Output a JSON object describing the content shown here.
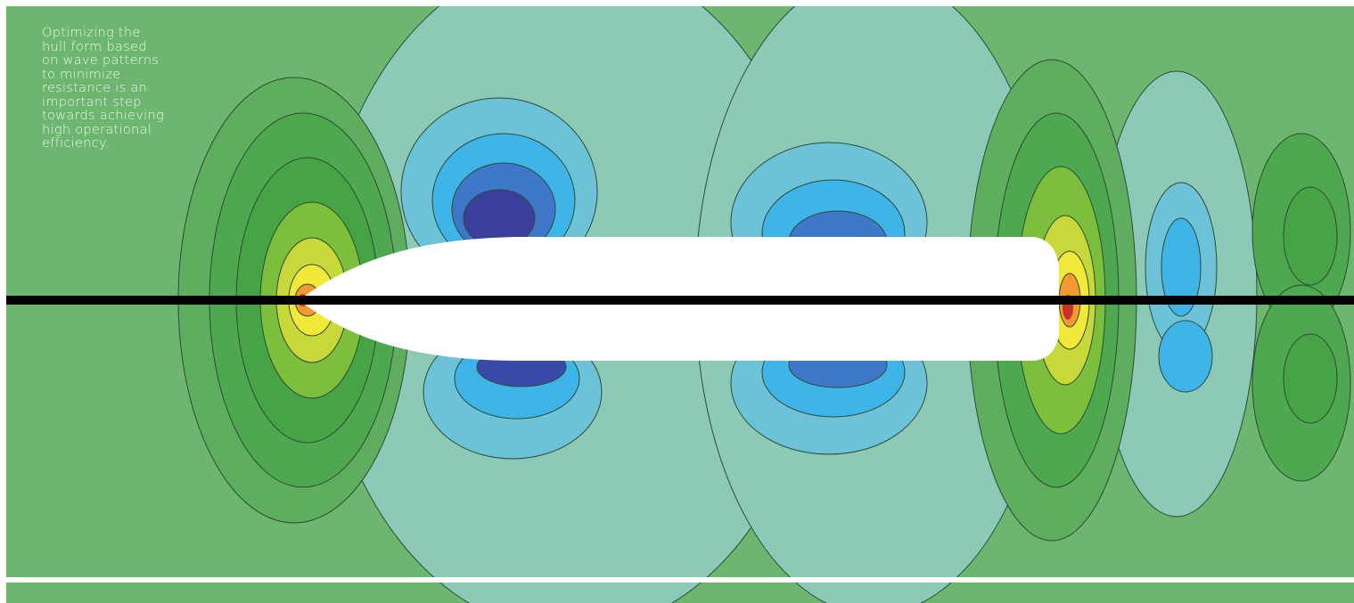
{
  "caption": {
    "lines": [
      "Optimizing the",
      "hull form based",
      "on wave patterns",
      "to minimize",
      "resistance is an",
      "important step",
      "towards achieving",
      "high operational",
      "efficiency."
    ]
  }
}
